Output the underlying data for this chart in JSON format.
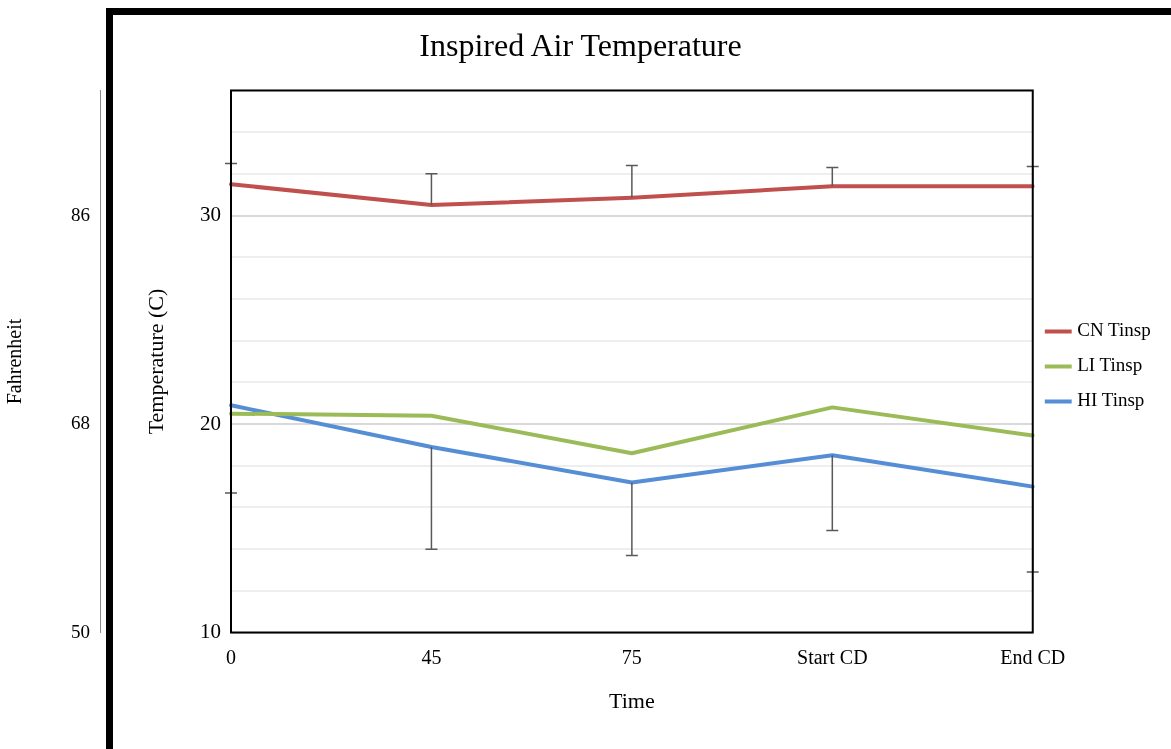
{
  "chart_data": {
    "type": "line",
    "title": "Inspired Air Temperature",
    "xlabel": "Time",
    "ylabel": "Temperature (C)",
    "y2label": "Fahrenheit",
    "categories": [
      "0",
      "45",
      "75",
      "Start CD",
      "End CD"
    ],
    "series": [
      {
        "name": "CN Tinsp",
        "color": "#c0504d",
        "values": [
          31.5,
          30.5,
          30.85,
          31.4,
          31.4
        ],
        "errors": [
          [
            31.5,
            32.5
          ],
          [
            30.5,
            32.0
          ],
          [
            30.85,
            32.4
          ],
          [
            31.4,
            32.3
          ],
          [
            31.4,
            32.35
          ]
        ]
      },
      {
        "name": "LI Tinsp",
        "color": "#9bbb59",
        "values": [
          20.5,
          20.4,
          18.6,
          20.8,
          19.45
        ]
      },
      {
        "name": "HI Tinsp",
        "color": "#558ed5",
        "values": [
          20.9,
          18.9,
          17.2,
          18.5,
          17.0
        ],
        "errors": [
          [
            16.7,
            20.9
          ],
          [
            14.0,
            18.9
          ],
          [
            13.7,
            17.2
          ],
          [
            14.9,
            18.5
          ],
          [
            12.9,
            17.0
          ]
        ]
      }
    ],
    "ylim": [
      10,
      36
    ],
    "yticks": [
      10,
      {
        "value": 12,
        "label": null
      },
      {
        "value": 14,
        "label": null
      },
      {
        "value": 16,
        "label": null
      },
      {
        "value": 18,
        "label": null
      },
      20,
      {
        "value": 22,
        "label": null
      },
      {
        "value": 24,
        "label": null
      },
      {
        "value": 26,
        "label": null
      },
      {
        "value": 28,
        "label": null
      },
      30,
      {
        "value": 32,
        "label": null
      },
      {
        "value": 34,
        "label": null
      },
      {
        "value": 36,
        "label": null
      }
    ],
    "y2lim": [
      50,
      96.8
    ],
    "y2ticks": [
      50,
      68,
      86
    ],
    "grid": "y",
    "legend": "right",
    "marker": "none",
    "line_style": "solid"
  }
}
